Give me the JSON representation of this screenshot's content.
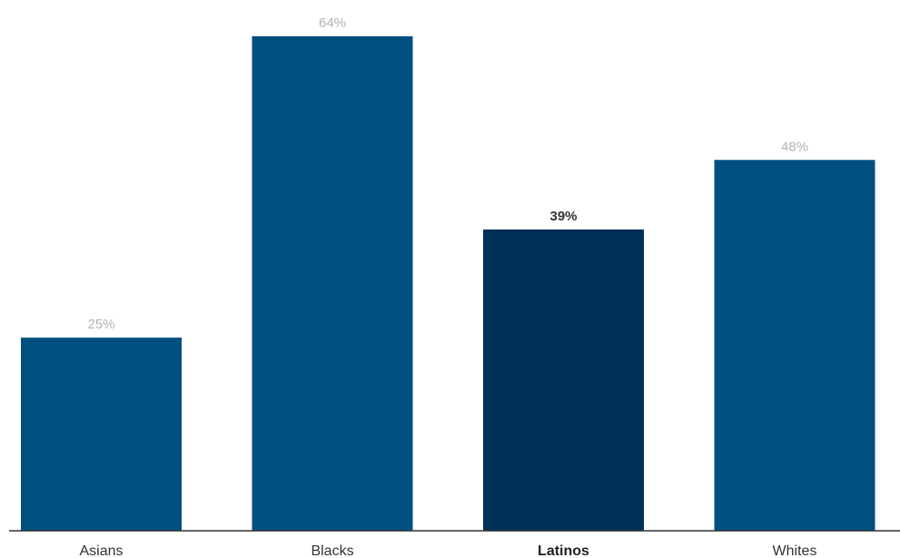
{
  "chart_data": {
    "type": "bar",
    "categories": [
      "Asians",
      "Blacks",
      "Latinos",
      "Whites"
    ],
    "values": [
      25,
      64,
      39,
      48
    ],
    "value_labels": [
      "25%",
      "64%",
      "39%",
      "48%"
    ],
    "highlight": "Latinos",
    "ylim": [
      0,
      68
    ],
    "grid": false,
    "colors": {
      "bar": "#00507f",
      "highlight": "#003057",
      "axis": "#333333"
    }
  }
}
